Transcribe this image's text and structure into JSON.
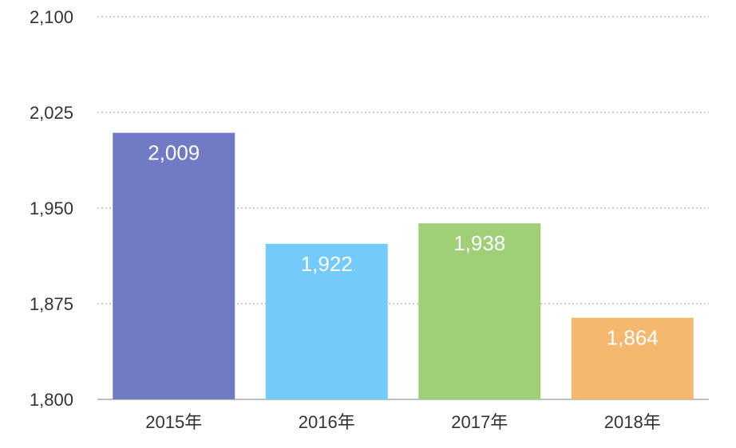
{
  "chart_data": {
    "type": "bar",
    "categories": [
      "2015年",
      "2016年",
      "2017年",
      "2018年"
    ],
    "values": [
      2009,
      1922,
      1938,
      1864
    ],
    "data_labels": [
      "2,009",
      "1,922",
      "1,938",
      "1,864"
    ],
    "colors": [
      "#717bc5",
      "#74cbfa",
      "#9fcf76",
      "#f4b86f"
    ],
    "ylim": [
      1800,
      2100
    ],
    "yticks": [
      2100,
      2025,
      1950,
      1875,
      1800
    ],
    "ytick_labels": [
      "2,100",
      "2,025",
      "1,950",
      "1,875",
      "1,800"
    ],
    "grid": true,
    "title": "",
    "xlabel": "",
    "ylabel": ""
  }
}
